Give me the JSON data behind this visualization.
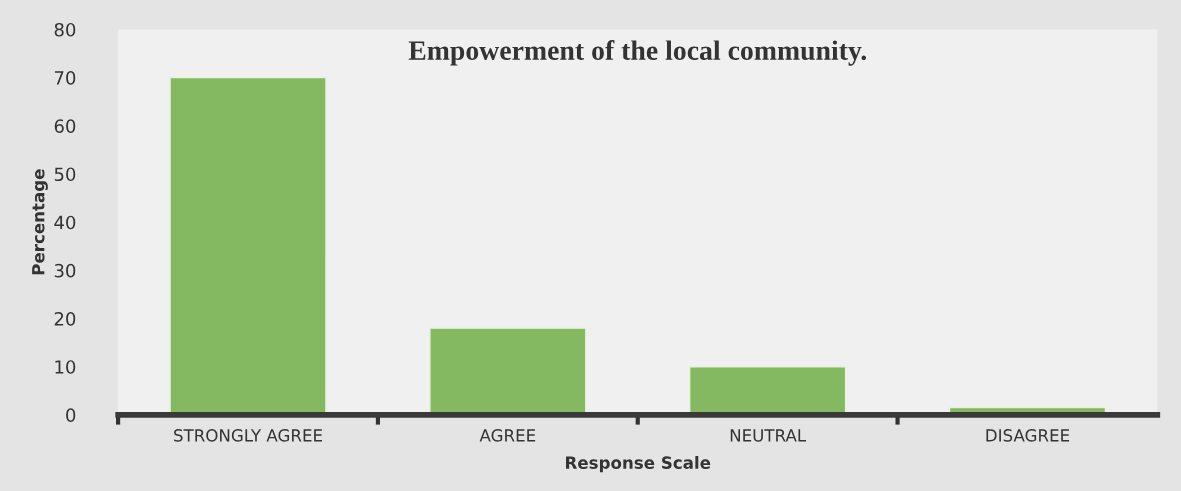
{
  "chart_data": {
    "type": "bar",
    "title": "Empowerment of the local community.",
    "xlabel": "Response Scale",
    "ylabel": "Percentage",
    "categories": [
      "STRONGLY AGREE",
      "AGREE",
      "NEUTRAL",
      "DISAGREE"
    ],
    "values": [
      70,
      18,
      10,
      1.5
    ],
    "color": "#84b962",
    "ylim": [
      0,
      80
    ],
    "yticks": [
      0,
      10,
      20,
      30,
      40,
      50,
      60,
      70,
      80
    ],
    "grid": false,
    "legend": false
  }
}
